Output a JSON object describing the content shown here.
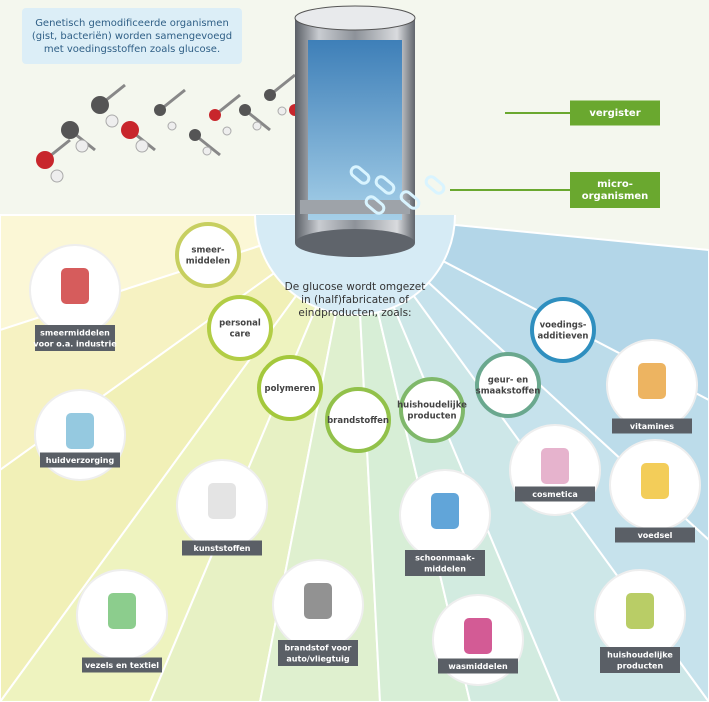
{
  "intro": [
    "Genetisch gemodificeerde organismen",
    "(gist, bacteriën) worden samengevoegd",
    "met voedingsstoffen zoals glucose."
  ],
  "tags": [
    [
      "vergister"
    ],
    [
      "micro-",
      "organismen"
    ]
  ],
  "center_text": [
    "De glucose wordt omgezet",
    "in (half)fabricaten of",
    "eindproducten, zoals:"
  ],
  "categories": [
    [
      "smeer-",
      "middelen"
    ],
    [
      "personal",
      "care"
    ],
    [
      "polymeren"
    ],
    [
      "brandstoffen"
    ],
    [
      "huishoudelijke",
      "producten"
    ],
    [
      "geur- en",
      "smaakstoffen"
    ],
    [
      "voedings-",
      "additieven"
    ]
  ],
  "products": [
    [
      "smeermiddelen",
      "voor o.a. industrie"
    ],
    [
      "huidverzorging"
    ],
    [
      "kunststoffen"
    ],
    [
      "vezels en textiel"
    ],
    [
      "brandstof voor",
      "auto/vliegtuig"
    ],
    [
      "schoonmaak-",
      "middelen"
    ],
    [
      "wasmiddelen"
    ],
    [
      "cosmetica"
    ],
    [
      "vitamines"
    ],
    [
      "voedsel"
    ],
    [
      "huishoudelijke",
      "producten"
    ]
  ]
}
